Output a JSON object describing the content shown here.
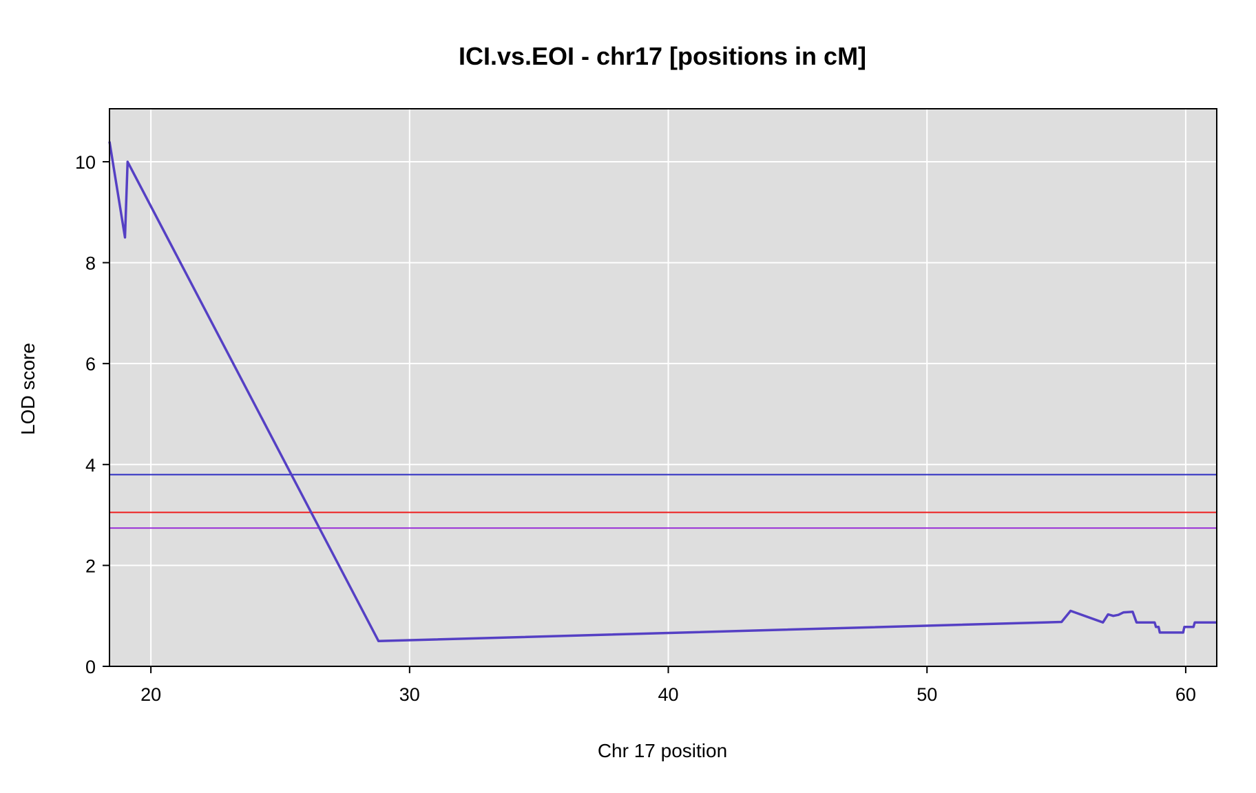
{
  "chart_data": {
    "type": "line",
    "title": "ICI.vs.EOI - chr17 [positions in cM]",
    "xlabel": "Chr 17 position",
    "ylabel": "LOD score",
    "xlim": [
      18.4,
      61.2
    ],
    "ylim": [
      0,
      11.05
    ],
    "x_ticks": [
      20,
      30,
      40,
      50,
      60
    ],
    "y_ticks": [
      0,
      2,
      4,
      6,
      8,
      10
    ],
    "grid": true,
    "background_color": "#dedede",
    "grid_color": "#ffffff",
    "series": [
      {
        "color": "#5540c4",
        "x": [
          18.4,
          19.0,
          19.1,
          28.8,
          55.2,
          55.55,
          56.8,
          57.0,
          57.2,
          57.4,
          57.6,
          57.95,
          58.1,
          58.8,
          58.85,
          58.95,
          59.0,
          59.9,
          59.95,
          60.3,
          60.35,
          61.2
        ],
        "y": [
          10.4,
          8.5,
          10.0,
          0.5,
          0.88,
          1.1,
          0.87,
          1.03,
          1.0,
          1.02,
          1.07,
          1.08,
          0.87,
          0.87,
          0.78,
          0.78,
          0.67,
          0.67,
          0.78,
          0.78,
          0.87,
          0.87
        ]
      }
    ],
    "thresholds": [
      {
        "y": 3.8,
        "color": "#2b2bc2"
      },
      {
        "y": 3.05,
        "color": "#ee1c1c"
      },
      {
        "y": 2.74,
        "color": "#9a30d6"
      }
    ]
  }
}
